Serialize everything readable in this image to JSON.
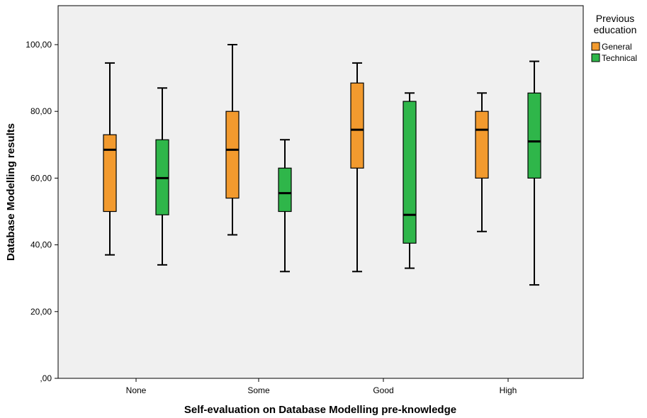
{
  "chart_data": {
    "type": "boxplot",
    "xlabel": "Self-evaluation on Database Modelling pre-knowledge",
    "ylabel": "Database Modelling results",
    "categories": [
      "None",
      "Some",
      "Good",
      "High"
    ],
    "ylim": [
      0,
      100
    ],
    "yticks": [
      0,
      20,
      40,
      60,
      80,
      100
    ],
    "ytick_labels": [
      ",00",
      "20,00",
      "40,00",
      "60,00",
      "80,00",
      "100,00"
    ],
    "grid": false,
    "legend": {
      "title_lines": [
        "Previous",
        "education"
      ],
      "placement": "right"
    },
    "series": [
      {
        "name": "General",
        "color": "#f29a2e",
        "boxes": [
          {
            "min": 37,
            "q1": 50,
            "median": 68.5,
            "q3": 73,
            "max": 94.5
          },
          {
            "min": 43,
            "q1": 54,
            "median": 68.5,
            "q3": 80,
            "max": 100
          },
          {
            "min": 32,
            "q1": 63,
            "median": 74.5,
            "q3": 88.5,
            "max": 94.5
          },
          {
            "min": 44,
            "q1": 60,
            "median": 74.5,
            "q3": 80,
            "max": 85.5
          }
        ]
      },
      {
        "name": "Technical",
        "color": "#2fb64a",
        "boxes": [
          {
            "min": 34,
            "q1": 49,
            "median": 60,
            "q3": 71.5,
            "max": 87
          },
          {
            "min": 32,
            "q1": 50,
            "median": 55.5,
            "q3": 63,
            "max": 71.5
          },
          {
            "min": 33,
            "q1": 40.5,
            "median": 49,
            "q3": 83,
            "max": 85.5
          },
          {
            "min": 28,
            "q1": 60,
            "median": 71,
            "q3": 85.5,
            "max": 95
          }
        ]
      }
    ]
  }
}
